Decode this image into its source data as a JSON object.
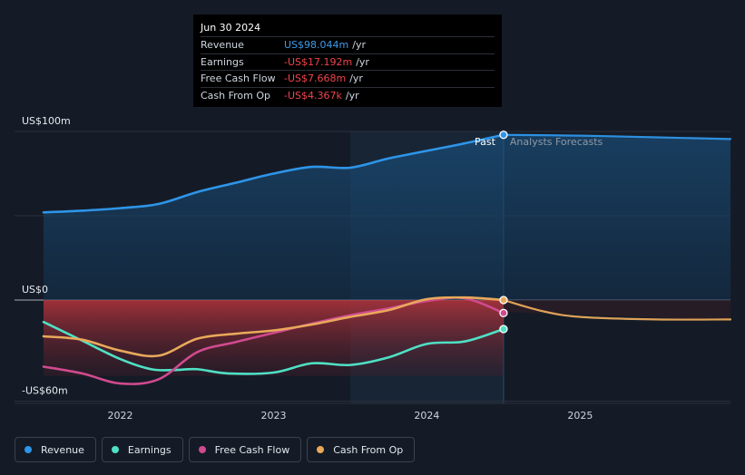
{
  "tooltip": {
    "date": "Jun 30 2024",
    "rows": [
      {
        "label": "Revenue",
        "value": "US$98.044m",
        "unit": "/yr",
        "color": "#3d9be9"
      },
      {
        "label": "Earnings",
        "value": "-US$17.192m",
        "unit": "/yr",
        "color": "#f0444d"
      },
      {
        "label": "Free Cash Flow",
        "value": "-US$7.668m",
        "unit": "/yr",
        "color": "#f0444d"
      },
      {
        "label": "Cash From Op",
        "value": "-US$4.367k",
        "unit": "/yr",
        "color": "#f0444d"
      }
    ]
  },
  "legend": [
    {
      "label": "Revenue",
      "color": "#2e95e8"
    },
    {
      "label": "Earnings",
      "color": "#4fe0c5"
    },
    {
      "label": "Free Cash Flow",
      "color": "#d04a8f"
    },
    {
      "label": "Cash From Op",
      "color": "#e9a95a"
    }
  ],
  "chart_data": {
    "type": "line",
    "title": "",
    "xlabel": "",
    "ylabel": "",
    "x_ticks": [
      2022,
      2023,
      2024,
      2025
    ],
    "x_tick_labels": [
      "2022",
      "2023",
      "2024",
      "2025"
    ],
    "xlim": [
      2021.5,
      2025.98
    ],
    "ylim": [
      -60,
      100
    ],
    "y_labels": [
      {
        "value": 100,
        "label": "US$100m"
      },
      {
        "value": 0,
        "label": "US$0"
      },
      {
        "value": -60,
        "label": "-US$60m"
      }
    ],
    "gridlines": [
      100,
      50,
      0,
      -60
    ],
    "past_label": "Past",
    "forecast_label": "Analysts Forecasts",
    "past_end_x": 2024.5,
    "highlight_start_x": 2023.5,
    "series": [
      {
        "name": "Revenue",
        "color": "#2e95e8",
        "x": [
          2021.5,
          2021.75,
          2022.0,
          2022.25,
          2022.5,
          2022.75,
          2023.0,
          2023.25,
          2023.5,
          2023.75,
          2024.0,
          2024.25,
          2024.5,
          2025.0,
          2025.5,
          2025.98
        ],
        "y": [
          52.0,
          53.0,
          54.5,
          57.0,
          64.0,
          69.5,
          75.0,
          79.0,
          78.5,
          84.0,
          88.5,
          93.0,
          98.0,
          97.5,
          96.5,
          95.5
        ]
      },
      {
        "name": "Earnings",
        "color": "#4fe0c5",
        "x": [
          2021.5,
          2021.75,
          2022.0,
          2022.2,
          2022.35,
          2022.5,
          2022.7,
          2023.0,
          2023.25,
          2023.5,
          2023.75,
          2024.0,
          2024.25,
          2024.5
        ],
        "y": [
          -13.0,
          -24.0,
          -35.0,
          -41.0,
          -41.5,
          -41.0,
          -43.5,
          -43.0,
          -37.5,
          -38.5,
          -34.0,
          -26.0,
          -24.5,
          -17.2
        ]
      },
      {
        "name": "Free Cash Flow",
        "color": "#d04a8f",
        "x": [
          2021.5,
          2021.75,
          2022.0,
          2022.25,
          2022.5,
          2022.75,
          2023.0,
          2023.25,
          2023.5,
          2023.75,
          2024.0,
          2024.25,
          2024.5
        ],
        "y": [
          -39.5,
          -43.5,
          -49.5,
          -47.0,
          -31.0,
          -25.0,
          -19.5,
          -14.0,
          -9.0,
          -5.0,
          -0.5,
          1.0,
          -7.7
        ]
      },
      {
        "name": "Cash From Op",
        "color": "#e9a95a",
        "x": [
          2021.5,
          2021.75,
          2022.0,
          2022.25,
          2022.5,
          2022.75,
          2023.0,
          2023.25,
          2023.5,
          2023.75,
          2024.0,
          2024.25,
          2024.5,
          2024.75,
          2025.0,
          2025.5,
          2025.98
        ],
        "y": [
          -21.5,
          -23.5,
          -30.0,
          -33.0,
          -23.0,
          -20.0,
          -18.0,
          -14.5,
          -10.0,
          -6.0,
          0.5,
          1.5,
          0.0,
          -6.5,
          -10.0,
          -11.5,
          -11.5
        ]
      }
    ]
  }
}
